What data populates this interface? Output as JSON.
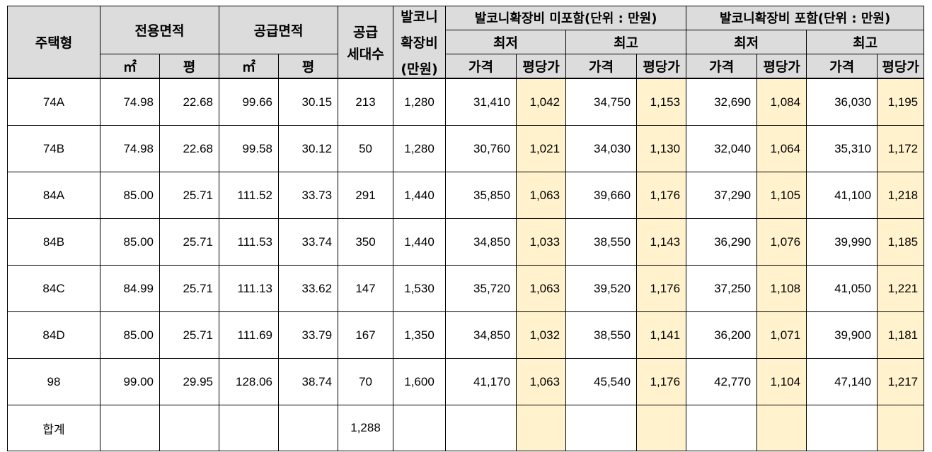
{
  "headers": {
    "type": "주택형",
    "exclusive_area": "전용면적",
    "supply_area": "공급면적",
    "supply_units": "공급\n세대수",
    "supply_units_l1": "공급",
    "supply_units_l2": "세대수",
    "balcony_fee_l1": "발코니",
    "balcony_fee_l2": "확장비",
    "balcony_fee_l3": "(만원)",
    "excl_group": "발코니확장비 미포함(단위 : 만원)",
    "incl_group": "발코니확장비 포함(단위 : 만원)",
    "min": "최저",
    "max": "최고",
    "sqm": "㎡",
    "pyeong": "평",
    "price": "가격",
    "per_pyeong": "평당가"
  },
  "rows": [
    {
      "type": "74A",
      "ex_sqm": "74.98",
      "ex_py": "22.68",
      "su_sqm": "99.66",
      "su_py": "30.15",
      "units": "213",
      "balcony": "1,280",
      "a_min_p": "31,410",
      "a_min_pp": "1,042",
      "a_max_p": "34,750",
      "a_max_pp": "1,153",
      "b_min_p": "32,690",
      "b_min_pp": "1,084",
      "b_max_p": "36,030",
      "b_max_pp": "1,195"
    },
    {
      "type": "74B",
      "ex_sqm": "74.98",
      "ex_py": "22.68",
      "su_sqm": "99.58",
      "su_py": "30.12",
      "units": "50",
      "balcony": "1,280",
      "a_min_p": "30,760",
      "a_min_pp": "1,021",
      "a_max_p": "34,030",
      "a_max_pp": "1,130",
      "b_min_p": "32,040",
      "b_min_pp": "1,064",
      "b_max_p": "35,310",
      "b_max_pp": "1,172"
    },
    {
      "type": "84A",
      "ex_sqm": "85.00",
      "ex_py": "25.71",
      "su_sqm": "111.52",
      "su_py": "33.73",
      "units": "291",
      "balcony": "1,440",
      "a_min_p": "35,850",
      "a_min_pp": "1,063",
      "a_max_p": "39,660",
      "a_max_pp": "1,176",
      "b_min_p": "37,290",
      "b_min_pp": "1,105",
      "b_max_p": "41,100",
      "b_max_pp": "1,218"
    },
    {
      "type": "84B",
      "ex_sqm": "85.00",
      "ex_py": "25.71",
      "su_sqm": "111.53",
      "su_py": "33.74",
      "units": "350",
      "balcony": "1,440",
      "a_min_p": "34,850",
      "a_min_pp": "1,033",
      "a_max_p": "38,550",
      "a_max_pp": "1,143",
      "b_min_p": "36,290",
      "b_min_pp": "1,076",
      "b_max_p": "39,990",
      "b_max_pp": "1,185"
    },
    {
      "type": "84C",
      "ex_sqm": "84.99",
      "ex_py": "25.71",
      "su_sqm": "111.13",
      "su_py": "33.62",
      "units": "147",
      "balcony": "1,530",
      "a_min_p": "35,720",
      "a_min_pp": "1,063",
      "a_max_p": "39,520",
      "a_max_pp": "1,176",
      "b_min_p": "37,250",
      "b_min_pp": "1,108",
      "b_max_p": "41,050",
      "b_max_pp": "1,221"
    },
    {
      "type": "84D",
      "ex_sqm": "85.00",
      "ex_py": "25.71",
      "su_sqm": "111.69",
      "su_py": "33.79",
      "units": "167",
      "balcony": "1,350",
      "a_min_p": "34,850",
      "a_min_pp": "1,032",
      "a_max_p": "38,550",
      "a_max_pp": "1,141",
      "b_min_p": "36,200",
      "b_min_pp": "1,071",
      "b_max_p": "39,900",
      "b_max_pp": "1,181"
    },
    {
      "type": "98",
      "ex_sqm": "99.00",
      "ex_py": "29.95",
      "su_sqm": "128.06",
      "su_py": "38.74",
      "units": "70",
      "balcony": "1,600",
      "a_min_p": "41,170",
      "a_min_pp": "1,063",
      "a_max_p": "45,540",
      "a_max_pp": "1,176",
      "b_min_p": "42,770",
      "b_min_pp": "1,104",
      "b_max_p": "47,140",
      "b_max_pp": "1,217"
    }
  ],
  "total": {
    "label": "합계",
    "units": "1,288"
  },
  "colors": {
    "header_bg": "#dcdcdc",
    "highlight": "#fff2cc"
  }
}
